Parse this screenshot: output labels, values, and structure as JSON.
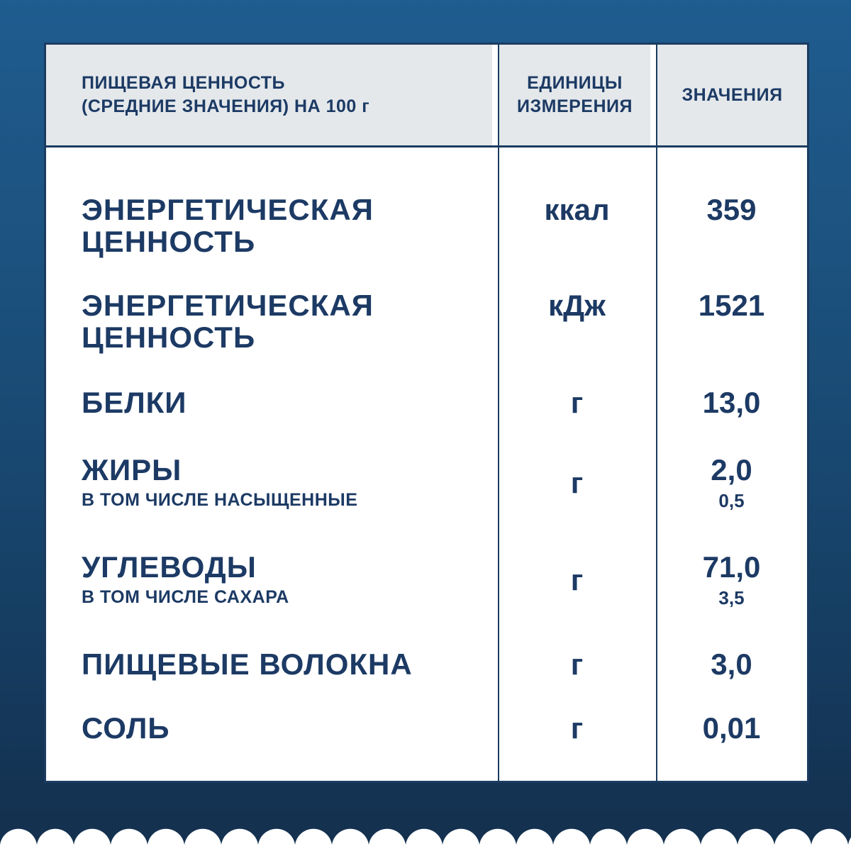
{
  "colors": {
    "background_top": "#1f5c8f",
    "background_bottom": "#143150",
    "line_navy": "#1b3c60",
    "text_navy": "#1c3a64",
    "header_bg": "#e4e8eb",
    "table_bg": "#ffffff"
  },
  "table": {
    "header": {
      "nutrition_line1": "ПИЩЕВАЯ ЦЕННОСТЬ",
      "nutrition_line2": "(СРЕДНИЕ ЗНАЧЕНИЯ) НА 100 г",
      "units_line1": "ЕДИНИЦЫ",
      "units_line2": "ИЗМЕРЕНИЯ",
      "values_label": "ЗНАЧЕНИЯ"
    },
    "rows": [
      {
        "label": "ЭНЕРГЕТИЧЕСКАЯ ЦЕННОСТЬ",
        "unit": "ккал",
        "value": "359"
      },
      {
        "label": "ЭНЕРГЕТИЧЕСКАЯ ЦЕННОСТЬ",
        "unit": "кДж",
        "value": "1521"
      },
      {
        "label": "БЕЛКИ",
        "unit": "г",
        "value": "13,0"
      },
      {
        "label": "ЖИРЫ",
        "sublabel": "В ТОМ ЧИСЛЕ НАСЫЩЕННЫЕ",
        "unit": "г",
        "value": "2,0",
        "subvalue": "0,5"
      },
      {
        "label": "УГЛЕВОДЫ",
        "sublabel": "В ТОМ ЧИСЛЕ САХАРА",
        "unit": "г",
        "value": "71,0",
        "subvalue": "3,5"
      },
      {
        "label": "ПИЩЕВЫЕ ВОЛОКНА",
        "unit": "г",
        "value": "3,0"
      },
      {
        "label": "СОЛЬ",
        "unit": "г",
        "value": "0,01"
      }
    ]
  }
}
